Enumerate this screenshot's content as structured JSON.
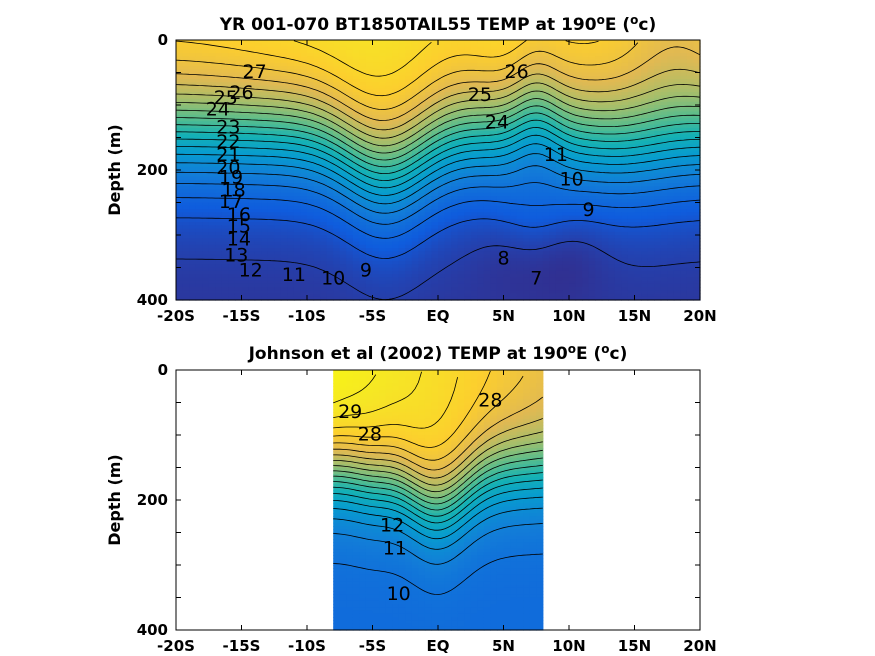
{
  "chart_data": [
    {
      "type": "heatmap",
      "subtype": "filled-contour",
      "title": "YR 001-070 BT1850TAIL55 TEMP at 190",
      "title_sup": "o",
      "title_tail": "E (",
      "title_unit_sup": "o",
      "title_end": "c)",
      "ylabel": "Depth (m)",
      "xlim": [
        -20,
        20
      ],
      "ylim": [
        0,
        400
      ],
      "y_reversed": true,
      "x_ticks": [
        -20,
        -15,
        -10,
        -5,
        0,
        5,
        10,
        15,
        20
      ],
      "x_tick_labels": [
        "-20S",
        "-15S",
        "-10S",
        "-5S",
        "EQ",
        "5N",
        "10N",
        "15N",
        "20N"
      ],
      "y_ticks": [
        0,
        200,
        400
      ],
      "y_tick_labels": [
        "0",
        "200",
        "400"
      ],
      "data_extent_x": [
        -20,
        20
      ],
      "colormap": "parula",
      "contour_labels": [
        {
          "text": "27",
          "x": -14.0,
          "y": 50
        },
        {
          "text": "26",
          "x": -15.0,
          "y": 82
        },
        {
          "text": "25",
          "x": -16.2,
          "y": 90
        },
        {
          "text": "24",
          "x": -16.8,
          "y": 108
        },
        {
          "text": "23",
          "x": -16.0,
          "y": 135
        },
        {
          "text": "22",
          "x": -16.0,
          "y": 158
        },
        {
          "text": "21",
          "x": -16.0,
          "y": 178
        },
        {
          "text": "20",
          "x": -16.0,
          "y": 198
        },
        {
          "text": "19",
          "x": -15.8,
          "y": 212
        },
        {
          "text": "18",
          "x": -15.6,
          "y": 232
        },
        {
          "text": "17",
          "x": -15.8,
          "y": 250
        },
        {
          "text": "16",
          "x": -15.2,
          "y": 270
        },
        {
          "text": "15",
          "x": -15.2,
          "y": 288
        },
        {
          "text": "14",
          "x": -15.2,
          "y": 308
        },
        {
          "text": "13",
          "x": -15.4,
          "y": 332
        },
        {
          "text": "12",
          "x": -14.3,
          "y": 355
        },
        {
          "text": "11",
          "x": -11.0,
          "y": 362
        },
        {
          "text": "10",
          "x": -8.0,
          "y": 368
        },
        {
          "text": "9",
          "x": -5.5,
          "y": 355
        },
        {
          "text": "26",
          "x": 6.0,
          "y": 50
        },
        {
          "text": "25",
          "x": 3.2,
          "y": 85
        },
        {
          "text": "24",
          "x": 4.5,
          "y": 128
        },
        {
          "text": "11",
          "x": 9.0,
          "y": 178
        },
        {
          "text": "10",
          "x": 10.2,
          "y": 215
        },
        {
          "text": "9",
          "x": 11.5,
          "y": 262
        },
        {
          "text": "8",
          "x": 5.0,
          "y": 337
        },
        {
          "text": "7",
          "x": 7.5,
          "y": 368
        }
      ]
    },
    {
      "type": "heatmap",
      "subtype": "filled-contour",
      "title": "Johnson et al (2002) TEMP at 190",
      "title_sup": "o",
      "title_tail": "E (",
      "title_unit_sup": "o",
      "title_end": "c)",
      "ylabel": "Depth (m)",
      "xlim": [
        -20,
        20
      ],
      "ylim": [
        0,
        400
      ],
      "y_reversed": true,
      "x_ticks": [
        -20,
        -15,
        -10,
        -5,
        0,
        5,
        10,
        15,
        20
      ],
      "x_tick_labels": [
        "-20S",
        "-15S",
        "-10S",
        "-5S",
        "EQ",
        "5N",
        "10N",
        "15N",
        "20N"
      ],
      "y_ticks": [
        0,
        200,
        400
      ],
      "y_tick_labels": [
        "0",
        "200",
        "400"
      ],
      "data_extent_x": [
        -8,
        8
      ],
      "colormap": "parula",
      "contour_labels": [
        {
          "text": "29",
          "x": -6.7,
          "y": 65
        },
        {
          "text": "28",
          "x": -5.2,
          "y": 100
        },
        {
          "text": "28",
          "x": 4.0,
          "y": 48
        },
        {
          "text": "12",
          "x": -3.5,
          "y": 240
        },
        {
          "text": "11",
          "x": -3.3,
          "y": 275
        },
        {
          "text": "10",
          "x": -3.0,
          "y": 345
        }
      ]
    }
  ]
}
